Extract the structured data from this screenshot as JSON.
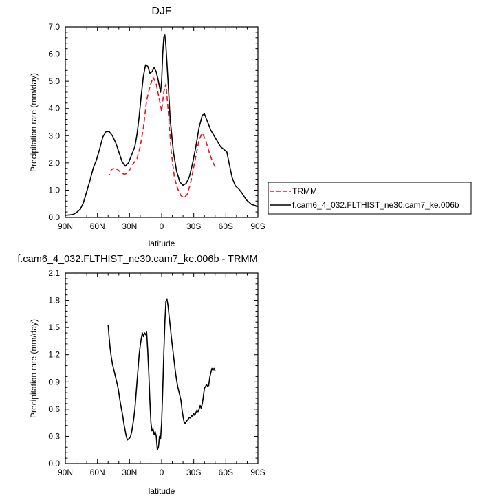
{
  "chart_data": [
    {
      "type": "line",
      "title": "DJF",
      "xlabel": "latitude",
      "ylabel": "Precipitation rate (mm/day)",
      "xlim": [
        90,
        -90
      ],
      "ylim": [
        0,
        7
      ],
      "xticks": [
        {
          "v": 90,
          "label": "90N"
        },
        {
          "v": 60,
          "label": "60N"
        },
        {
          "v": 30,
          "label": "30N"
        },
        {
          "v": 0,
          "label": "0"
        },
        {
          "v": -30,
          "label": "30S"
        },
        {
          "v": -60,
          "label": "60S"
        },
        {
          "v": -90,
          "label": "90S"
        }
      ],
      "yticks": [
        {
          "v": 0,
          "label": "0.0"
        },
        {
          "v": 1,
          "label": "1.0"
        },
        {
          "v": 2,
          "label": "2.0"
        },
        {
          "v": 3,
          "label": "3.0"
        },
        {
          "v": 4,
          "label": "4.0"
        },
        {
          "v": 5,
          "label": "5.0"
        },
        {
          "v": 6,
          "label": "6.0"
        },
        {
          "v": 7,
          "label": "7.0"
        }
      ],
      "legend_position": "right",
      "series": [
        {
          "name": "TRMM",
          "color": "#e8131f",
          "dash": true,
          "points": [
            [
              -50,
              1.85
            ],
            [
              -47,
              2.1
            ],
            [
              -44,
              2.45
            ],
            [
              -41,
              2.85
            ],
            [
              -38,
              3.1
            ],
            [
              -35,
              2.85
            ],
            [
              -31,
              2.05
            ],
            [
              -27,
              1.25
            ],
            [
              -24,
              0.85
            ],
            [
              -21,
              0.72
            ],
            [
              -18,
              0.8
            ],
            [
              -15,
              1.05
            ],
            [
              -12,
              1.45
            ],
            [
              -9,
              2.4
            ],
            [
              -6,
              4.0
            ],
            [
              -4,
              4.9
            ],
            [
              -2,
              4.6
            ],
            [
              0,
              3.9
            ],
            [
              2,
              4.3
            ],
            [
              5,
              4.9
            ],
            [
              8,
              5.15
            ],
            [
              11,
              4.8
            ],
            [
              14,
              4.3
            ],
            [
              17,
              3.3
            ],
            [
              20,
              2.6
            ],
            [
              23,
              2.15
            ],
            [
              26,
              2.0
            ],
            [
              29,
              1.8
            ],
            [
              32,
              1.62
            ],
            [
              35,
              1.58
            ],
            [
              38,
              1.65
            ],
            [
              41,
              1.75
            ],
            [
              44,
              1.82
            ],
            [
              47,
              1.75
            ],
            [
              49,
              1.55
            ]
          ]
        },
        {
          "name": "f.cam6_4_032.FLTHIST_ne30.cam7_ke.006b",
          "color": "#000000",
          "dash": false,
          "points": [
            [
              -90,
              0.4
            ],
            [
              -84,
              0.48
            ],
            [
              -79,
              0.65
            ],
            [
              -75,
              0.9
            ],
            [
              -72,
              1.05
            ],
            [
              -69,
              1.15
            ],
            [
              -66,
              1.45
            ],
            [
              -63,
              2.0
            ],
            [
              -61,
              2.4
            ],
            [
              -58,
              2.5
            ],
            [
              -55,
              2.6
            ],
            [
              -52,
              2.8
            ],
            [
              -49,
              3.0
            ],
            [
              -46,
              3.2
            ],
            [
              -43,
              3.5
            ],
            [
              -40,
              3.8
            ],
            [
              -38,
              3.75
            ],
            [
              -35,
              3.3
            ],
            [
              -32,
              2.6
            ],
            [
              -29,
              2.0
            ],
            [
              -26,
              1.5
            ],
            [
              -23,
              1.25
            ],
            [
              -20,
              1.18
            ],
            [
              -17,
              1.3
            ],
            [
              -14,
              1.7
            ],
            [
              -11,
              2.4
            ],
            [
              -8,
              3.6
            ],
            [
              -6,
              5.0
            ],
            [
              -4,
              6.3
            ],
            [
              -3,
              6.7
            ],
            [
              -2,
              6.6
            ],
            [
              -1,
              6.0
            ],
            [
              0,
              5.0
            ],
            [
              1,
              4.6
            ],
            [
              3,
              5.0
            ],
            [
              5,
              5.35
            ],
            [
              7,
              5.5
            ],
            [
              9,
              5.35
            ],
            [
              11,
              5.3
            ],
            [
              13,
              5.55
            ],
            [
              15,
              5.6
            ],
            [
              17,
              5.2
            ],
            [
              19,
              4.5
            ],
            [
              21,
              3.7
            ],
            [
              23,
              3.05
            ],
            [
              25,
              2.6
            ],
            [
              28,
              2.3
            ],
            [
              31,
              2.0
            ],
            [
              34,
              1.88
            ],
            [
              37,
              2.05
            ],
            [
              40,
              2.4
            ],
            [
              43,
              2.75
            ],
            [
              46,
              3.0
            ],
            [
              49,
              3.15
            ],
            [
              52,
              3.15
            ],
            [
              55,
              2.95
            ],
            [
              58,
              2.5
            ],
            [
              61,
              2.1
            ],
            [
              64,
              1.8
            ],
            [
              67,
              1.35
            ],
            [
              70,
              0.95
            ],
            [
              73,
              0.55
            ],
            [
              76,
              0.3
            ],
            [
              79,
              0.2
            ],
            [
              82,
              0.12
            ],
            [
              86,
              0.09
            ],
            [
              90,
              0.08
            ]
          ]
        }
      ]
    },
    {
      "type": "line",
      "title": "f.cam6_4_032.FLTHIST_ne30.cam7_ke.006b - TRMM",
      "xlabel": "latitude",
      "ylabel": "Precipitation rate (mm/day)",
      "xlim": [
        90,
        -90
      ],
      "ylim": [
        0,
        2.1
      ],
      "xticks": [
        {
          "v": 90,
          "label": "90N"
        },
        {
          "v": 60,
          "label": "60N"
        },
        {
          "v": 30,
          "label": "30N"
        },
        {
          "v": 0,
          "label": "0"
        },
        {
          "v": -30,
          "label": "30S"
        },
        {
          "v": -60,
          "label": "60S"
        },
        {
          "v": -90,
          "label": "90S"
        }
      ],
      "yticks": [
        {
          "v": 0,
          "label": "0.0"
        },
        {
          "v": 0.3,
          "label": "0.3"
        },
        {
          "v": 0.6,
          "label": "0.6"
        },
        {
          "v": 0.9,
          "label": "0.9"
        },
        {
          "v": 1.2,
          "label": "1.2"
        },
        {
          "v": 1.5,
          "label": "1.5"
        },
        {
          "v": 1.8,
          "label": "1.8"
        },
        {
          "v": 2.1,
          "label": "2.1"
        }
      ],
      "series": [
        {
          "color": "#000000",
          "dash": false,
          "points": [
            [
              -50,
              1.02
            ],
            [
              -49,
              1.05
            ],
            [
              -48,
              1.03
            ],
            [
              -47,
              1.05
            ],
            [
              -46,
              1.0
            ],
            [
              -45,
              0.95
            ],
            [
              -44,
              0.86
            ],
            [
              -43,
              0.85
            ],
            [
              -42,
              0.87
            ],
            [
              -41,
              0.85
            ],
            [
              -40,
              0.83
            ],
            [
              -39,
              0.74
            ],
            [
              -38,
              0.66
            ],
            [
              -37,
              0.61
            ],
            [
              -36,
              0.64
            ],
            [
              -35,
              0.6
            ],
            [
              -34,
              0.57
            ],
            [
              -33,
              0.59
            ],
            [
              -32,
              0.56
            ],
            [
              -31,
              0.53
            ],
            [
              -30,
              0.55
            ],
            [
              -29,
              0.52
            ],
            [
              -28,
              0.53
            ],
            [
              -27,
              0.5
            ],
            [
              -26,
              0.51
            ],
            [
              -25,
              0.49
            ],
            [
              -24,
              0.48
            ],
            [
              -23,
              0.46
            ],
            [
              -22,
              0.44
            ],
            [
              -21,
              0.46
            ],
            [
              -20,
              0.52
            ],
            [
              -19,
              0.6
            ],
            [
              -18,
              0.7
            ],
            [
              -17,
              0.75
            ],
            [
              -16,
              0.8
            ],
            [
              -15,
              0.85
            ],
            [
              -14,
              0.92
            ],
            [
              -13,
              1.0
            ],
            [
              -12,
              1.1
            ],
            [
              -11,
              1.2
            ],
            [
              -10,
              1.3
            ],
            [
              -9,
              1.4
            ],
            [
              -8,
              1.52
            ],
            [
              -7,
              1.62
            ],
            [
              -6,
              1.74
            ],
            [
              -5,
              1.81
            ],
            [
              -4,
              1.79
            ],
            [
              -3,
              1.55
            ],
            [
              -2,
              1.2
            ],
            [
              -1,
              0.8
            ],
            [
              0,
              0.45
            ],
            [
              1,
              0.27
            ],
            [
              2,
              0.3
            ],
            [
              3,
              0.18
            ],
            [
              4,
              0.15
            ],
            [
              5,
              0.3
            ],
            [
              6,
              0.35
            ],
            [
              7,
              0.32
            ],
            [
              8,
              0.38
            ],
            [
              9,
              0.36
            ],
            [
              10,
              0.45
            ],
            [
              11,
              0.7
            ],
            [
              12,
              1.0
            ],
            [
              13,
              1.25
            ],
            [
              14,
              1.45
            ],
            [
              15,
              1.42
            ],
            [
              16,
              1.44
            ],
            [
              17,
              1.4
            ],
            [
              18,
              1.44
            ],
            [
              19,
              1.38
            ],
            [
              20,
              1.3
            ],
            [
              21,
              1.2
            ],
            [
              22,
              1.05
            ],
            [
              23,
              0.9
            ],
            [
              24,
              0.75
            ],
            [
              25,
              0.6
            ],
            [
              26,
              0.5
            ],
            [
              27,
              0.42
            ],
            [
              28,
              0.35
            ],
            [
              29,
              0.3
            ],
            [
              30,
              0.28
            ],
            [
              31,
              0.27
            ],
            [
              32,
              0.26
            ],
            [
              33,
              0.3
            ],
            [
              34,
              0.36
            ],
            [
              35,
              0.42
            ],
            [
              36,
              0.5
            ],
            [
              37,
              0.57
            ],
            [
              38,
              0.63
            ],
            [
              39,
              0.7
            ],
            [
              40,
              0.78
            ],
            [
              41,
              0.85
            ],
            [
              42,
              0.9
            ],
            [
              43,
              0.95
            ],
            [
              44,
              1.0
            ],
            [
              45,
              1.05
            ],
            [
              46,
              1.1
            ],
            [
              47,
              1.17
            ],
            [
              48,
              1.26
            ],
            [
              49,
              1.38
            ],
            [
              50,
              1.53
            ]
          ]
        }
      ]
    }
  ]
}
